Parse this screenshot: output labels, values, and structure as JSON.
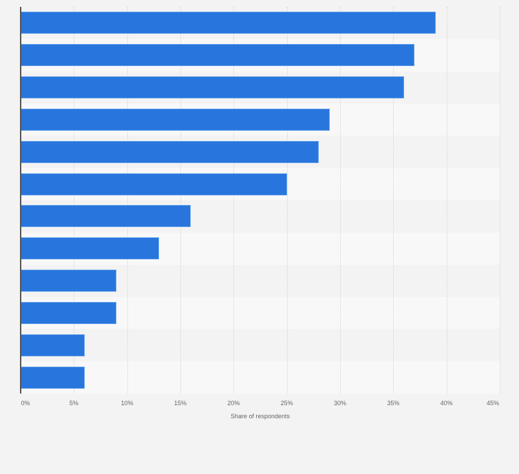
{
  "chart_data": {
    "type": "bar",
    "orientation": "horizontal",
    "title": "",
    "xlabel": "Share of respondents",
    "ylabel": "",
    "categories": [
      "",
      "",
      "",
      "",
      "",
      "",
      "",
      "",
      "",
      "",
      "",
      ""
    ],
    "values": [
      39,
      37,
      36,
      29,
      28,
      25,
      16,
      13,
      9,
      9,
      6,
      6
    ],
    "unit": "%",
    "xlim": [
      0,
      45
    ],
    "x_ticks": [
      "0%",
      "5%",
      "10%",
      "15%",
      "20%",
      "25%",
      "30%",
      "35%",
      "40%",
      "45%"
    ],
    "grid": true,
    "legend": null,
    "bar_color": "#2876dd"
  },
  "axis": {
    "xlabel": "Share of respondents",
    "ticks": [
      "0%",
      "5%",
      "10%",
      "15%",
      "20%",
      "25%",
      "30%",
      "35%",
      "40%",
      "45%"
    ]
  }
}
